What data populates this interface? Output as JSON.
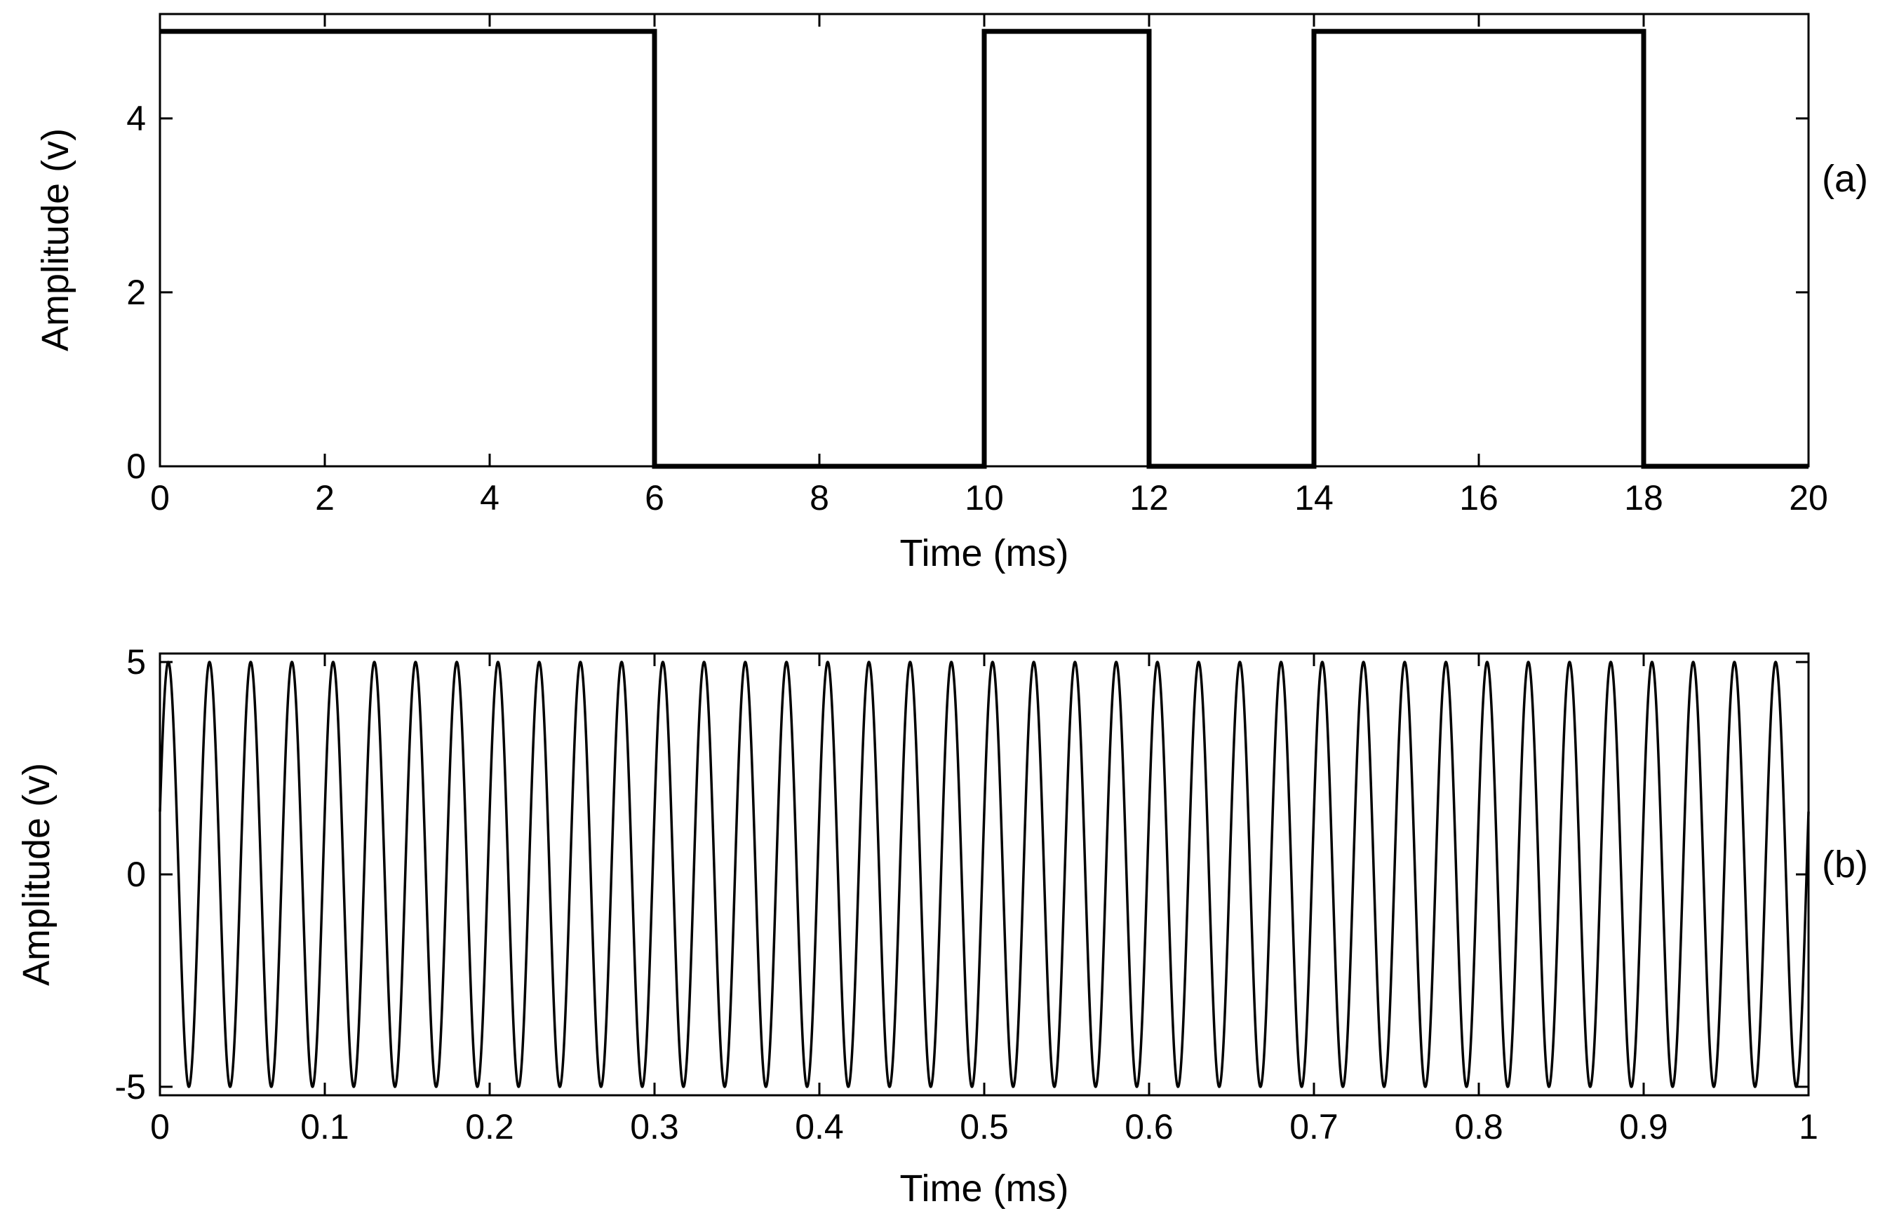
{
  "chart_data": [
    {
      "type": "line",
      "panel_label": "(a)",
      "xlabel": "Time (ms)",
      "ylabel": "Amplitude (v)",
      "xlim": [
        0,
        20
      ],
      "ylim": [
        0,
        5.2
      ],
      "xticks": [
        0,
        2,
        4,
        6,
        8,
        10,
        12,
        14,
        16,
        18,
        20
      ],
      "xtick_labels": [
        "0",
        "2",
        "4",
        "6",
        "8",
        "10",
        "12",
        "14",
        "16",
        "18",
        "20"
      ],
      "yticks": [
        0,
        2,
        4
      ],
      "ytick_labels": [
        "0",
        "2",
        "4"
      ],
      "grid": false,
      "series": [
        {
          "style": "step",
          "color": "#000000",
          "x": [
            0,
            6,
            6,
            10,
            10,
            12,
            12,
            14,
            14,
            18,
            18,
            20
          ],
          "y": [
            5,
            5,
            0,
            0,
            5,
            5,
            0,
            0,
            5,
            5,
            0,
            0
          ]
        }
      ]
    },
    {
      "type": "line",
      "panel_label": "(b)",
      "xlabel": "Time (ms)",
      "ylabel": "Amplitude (v)",
      "xlim": [
        0,
        1
      ],
      "ylim": [
        -5.2,
        5.2
      ],
      "xticks": [
        0,
        0.1,
        0.2,
        0.3,
        0.4,
        0.5,
        0.6,
        0.7,
        0.8,
        0.9,
        1
      ],
      "xtick_labels": [
        "0",
        "0.1",
        "0.2",
        "0.3",
        "0.4",
        "0.5",
        "0.6",
        "0.7",
        "0.8",
        "0.9",
        "1"
      ],
      "yticks": [
        -5,
        0,
        5
      ],
      "ytick_labels": [
        "-5",
        "0",
        "5"
      ],
      "grid": false,
      "series": [
        {
          "style": "sine",
          "color": "#000000",
          "amplitude": 5,
          "frequency_khz": 40,
          "phase_rad": 0.3
        }
      ]
    }
  ]
}
